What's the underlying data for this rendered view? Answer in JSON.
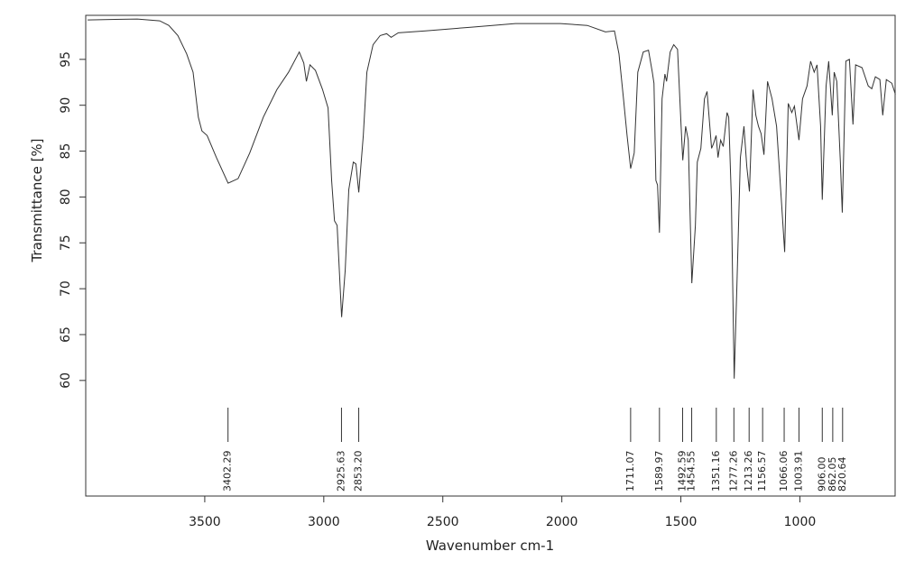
{
  "chart_data": {
    "type": "line",
    "x_label": "Wavenumber cm-1",
    "y_label": "Transmittance [%]",
    "xlim": [
      4000,
      600
    ],
    "ylim": [
      47.4,
      99.8
    ],
    "xticks": [
      3500,
      3000,
      2500,
      2000,
      1500,
      1000
    ],
    "yticks": [
      60,
      65,
      70,
      75,
      80,
      85,
      90,
      95
    ],
    "color": "#333333",
    "x": [
      3992,
      3783,
      3689,
      3651,
      3613,
      3576,
      3549,
      3527,
      3512,
      3490,
      3451,
      3402,
      3360,
      3311,
      3254,
      3197,
      3148,
      3103,
      3084,
      3073,
      3058,
      3035,
      3005,
      2982,
      2967,
      2955,
      2944,
      2925,
      2910,
      2895,
      2876,
      2865,
      2853,
      2834,
      2819,
      2793,
      2763,
      2736,
      2717,
      2687,
      2573,
      2384,
      2195,
      2006,
      1893,
      1817,
      1779,
      1760,
      1741,
      1726,
      1711,
      1696,
      1681,
      1658,
      1636,
      1620,
      1613,
      1605,
      1598,
      1590,
      1579,
      1567,
      1560,
      1545,
      1530,
      1514,
      1499,
      1492,
      1480,
      1469,
      1454,
      1439,
      1431,
      1416,
      1401,
      1390,
      1371,
      1363,
      1352,
      1344,
      1333,
      1322,
      1306,
      1299,
      1288,
      1276,
      1265,
      1250,
      1235,
      1223,
      1212,
      1197,
      1185,
      1174,
      1163,
      1151,
      1136,
      1117,
      1098,
      1076,
      1064,
      1049,
      1034,
      1023,
      1004,
      989,
      970,
      955,
      940,
      928,
      913,
      906,
      890,
      879,
      864,
      856,
      845,
      830,
      822,
      807,
      792,
      777,
      766,
      739,
      713,
      698,
      683,
      664,
      652,
      637,
      614,
      599
    ],
    "values": [
      99.3,
      99.4,
      99.2,
      98.7,
      97.6,
      95.6,
      93.6,
      88.7,
      87.2,
      86.7,
      84.3,
      81.5,
      82.0,
      84.8,
      88.7,
      91.7,
      93.6,
      95.8,
      94.6,
      92.6,
      94.4,
      93.8,
      91.7,
      89.7,
      81.8,
      77.4,
      76.9,
      66.9,
      72.0,
      80.8,
      83.8,
      83.6,
      80.5,
      86.7,
      93.6,
      96.6,
      97.6,
      97.8,
      97.4,
      97.9,
      98.1,
      98.5,
      98.9,
      98.9,
      98.7,
      98.0,
      98.1,
      95.6,
      90.7,
      86.7,
      83.1,
      84.8,
      93.6,
      95.8,
      96.0,
      93.6,
      92.4,
      81.8,
      81.3,
      76.1,
      90.7,
      93.4,
      92.6,
      95.8,
      96.6,
      96.1,
      87.7,
      84.0,
      87.7,
      86.2,
      70.6,
      76.9,
      83.8,
      85.3,
      90.7,
      91.5,
      85.3,
      85.8,
      86.7,
      84.3,
      86.2,
      85.5,
      89.2,
      88.7,
      79.9,
      60.2,
      70.0,
      84.3,
      87.7,
      83.3,
      80.6,
      91.7,
      88.9,
      87.7,
      86.9,
      84.6,
      92.6,
      90.7,
      87.7,
      78.9,
      74.0,
      90.2,
      89.2,
      89.9,
      86.2,
      90.7,
      92.1,
      94.8,
      93.6,
      94.4,
      87.7,
      79.7,
      92.1,
      94.8,
      88.9,
      93.6,
      92.6,
      83.8,
      78.3,
      94.8,
      95.0,
      87.9,
      94.4,
      94.1,
      92.1,
      91.8,
      93.1,
      92.8,
      88.9,
      92.8,
      92.4,
      91.2
    ],
    "annotations": [
      {
        "value": 3402.29,
        "label": "3402.29"
      },
      {
        "value": 2925.63,
        "label": "2925.63"
      },
      {
        "value": 2853.2,
        "label": "2853.20"
      },
      {
        "value": 1711.07,
        "label": "1711.07"
      },
      {
        "value": 1589.97,
        "label": "1589.97"
      },
      {
        "value": 1492.59,
        "label": "1492.59"
      },
      {
        "value": 1454.55,
        "label": "1454.55"
      },
      {
        "value": 1351.16,
        "label": "1351.16"
      },
      {
        "value": 1277.26,
        "label": "1277.26"
      },
      {
        "value": 1213.26,
        "label": "1213.26"
      },
      {
        "value": 1156.57,
        "label": "1156.57"
      },
      {
        "value": 1066.06,
        "label": "1066.06"
      },
      {
        "value": 1003.91,
        "label": "1003.91"
      },
      {
        "value": 906.0,
        "label": "906.00"
      },
      {
        "value": 862.05,
        "label": "862.05"
      },
      {
        "value": 820.64,
        "label": "820.64"
      }
    ]
  }
}
